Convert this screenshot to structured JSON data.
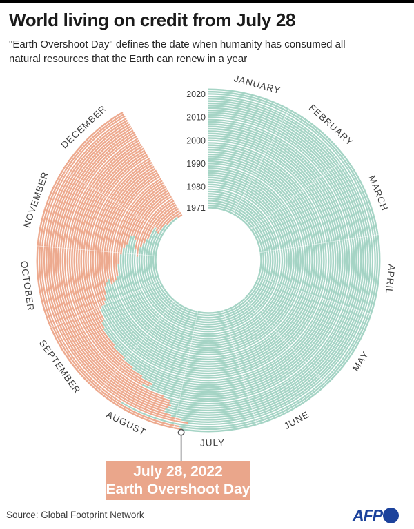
{
  "header": {
    "title": "World living on credit from July 28",
    "subtitle": "\"Earth Overshoot Day\" defines the date when humanity has consumed all natural resources that the Earth can renew in a year"
  },
  "chart_data": {
    "type": "radial_rings",
    "title": "Earth Overshoot Day by year, 1971-2022",
    "angle_span_deg": 330,
    "days_in_year": 365,
    "month_labels": [
      "JANUARY",
      "FEBRUARY",
      "MARCH",
      "APRIL",
      "MAY",
      "JUNE",
      "JULY",
      "AUGUST",
      "SEPTEMBER",
      "OCTOBER",
      "NOVEMBER",
      "DECEMBER"
    ],
    "month_mid_days": [
      15.5,
      45,
      74,
      104.5,
      135,
      165.5,
      196,
      227,
      257.5,
      288,
      318.5,
      349
    ],
    "month_start_days": [
      31,
      59,
      90,
      120,
      151,
      181,
      212,
      243,
      273,
      304,
      334
    ],
    "year_axis_ticks": [
      2020,
      2010,
      2000,
      1990,
      1980,
      1971
    ],
    "years": [
      1971,
      1972,
      1973,
      1974,
      1975,
      1976,
      1977,
      1978,
      1979,
      1980,
      1981,
      1982,
      1983,
      1984,
      1985,
      1986,
      1987,
      1988,
      1989,
      1990,
      1991,
      1992,
      1993,
      1994,
      1995,
      1996,
      1997,
      1998,
      1999,
      2000,
      2001,
      2002,
      2003,
      2004,
      2005,
      2006,
      2007,
      2008,
      2009,
      2010,
      2011,
      2012,
      2013,
      2014,
      2015,
      2016,
      2017,
      2018,
      2019,
      2020,
      2021,
      2022
    ],
    "overshoot_dates": [
      "Dec 25",
      "Dec 10",
      "Nov 26",
      "Nov 27",
      "Nov 30",
      "Nov 16",
      "Nov 11",
      "Nov 7",
      "Oct 29",
      "Nov 4",
      "Nov 12",
      "Nov 15",
      "Nov 14",
      "Nov 7",
      "Nov 4",
      "Oct 30",
      "Oct 23",
      "Oct 15",
      "Oct 12",
      "Oct 11",
      "Oct 10",
      "Oct 13",
      "Oct 12",
      "Oct 10",
      "Oct 5",
      "Oct 2",
      "Sep 30",
      "Sep 30",
      "Sep 29",
      "Sep 23",
      "Sep 22",
      "Sep 19",
      "Sep 9",
      "Sep 1",
      "Aug 26",
      "Aug 20",
      "Aug 14",
      "Aug 15",
      "Aug 18",
      "Aug 7",
      "Aug 4",
      "Aug 4",
      "Aug 3",
      "Aug 4",
      "Aug 5",
      "Aug 5",
      "Aug 2",
      "Jul 29",
      "Jul 26",
      "Aug 22",
      "Jul 29",
      "Jul 28"
    ],
    "overshoot_day_of_year": [
      359,
      344,
      330,
      331,
      334,
      320,
      315,
      311,
      302,
      308,
      316,
      319,
      318,
      311,
      308,
      303,
      296,
      288,
      285,
      284,
      283,
      287,
      285,
      283,
      278,
      275,
      273,
      273,
      272,
      266,
      265,
      262,
      252,
      244,
      238,
      232,
      226,
      227,
      230,
      219,
      216,
      216,
      215,
      216,
      217,
      217,
      214,
      210,
      207,
      234,
      210,
      209
    ],
    "colors": {
      "consumed": "#a5d4c5",
      "credit": "#edaa8f",
      "ring_gap": "#ffffff",
      "label_text": "#3c3c3c",
      "marker_stroke": "#58595b"
    },
    "legend_position": "none",
    "grid": "month radial gridlines, white"
  },
  "callout": {
    "line1": "July 28, 2022",
    "line2": "Earth Overshoot Day",
    "color": "#eaa68b"
  },
  "footer": {
    "source": "Source: Global Footprint Network",
    "logo_text": "AFP",
    "logo_color": "#1c429c"
  }
}
